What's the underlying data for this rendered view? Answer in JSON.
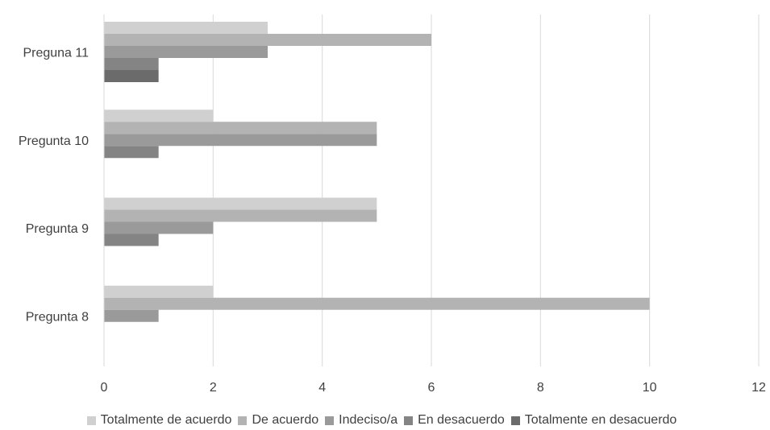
{
  "chart_data": {
    "type": "bar",
    "orientation": "horizontal",
    "categories": [
      "Pregunta 8",
      "Pregunta 9",
      "Pregunta 10",
      "Preguna 11"
    ],
    "series": [
      {
        "name": "Totalmente de acuerdo",
        "color": "#d0d0d0",
        "values": [
          2,
          5,
          2,
          3
        ]
      },
      {
        "name": "De acuerdo",
        "color": "#b3b3b3",
        "values": [
          10,
          5,
          5,
          6
        ]
      },
      {
        "name": "Indeciso/a",
        "color": "#9a9a9a",
        "values": [
          1,
          2,
          5,
          3
        ]
      },
      {
        "name": "En desacuerdo",
        "color": "#848484",
        "values": [
          0,
          1,
          1,
          1
        ]
      },
      {
        "name": "Totalmente en desacuerdo",
        "color": "#6b6b6b",
        "values": [
          0,
          0,
          0,
          1
        ]
      }
    ],
    "xlim": [
      0,
      12
    ],
    "xticks": [
      "0",
      "2",
      "4",
      "6",
      "8",
      "10",
      "12"
    ],
    "grid": "vertical",
    "legend_position": "bottom"
  }
}
